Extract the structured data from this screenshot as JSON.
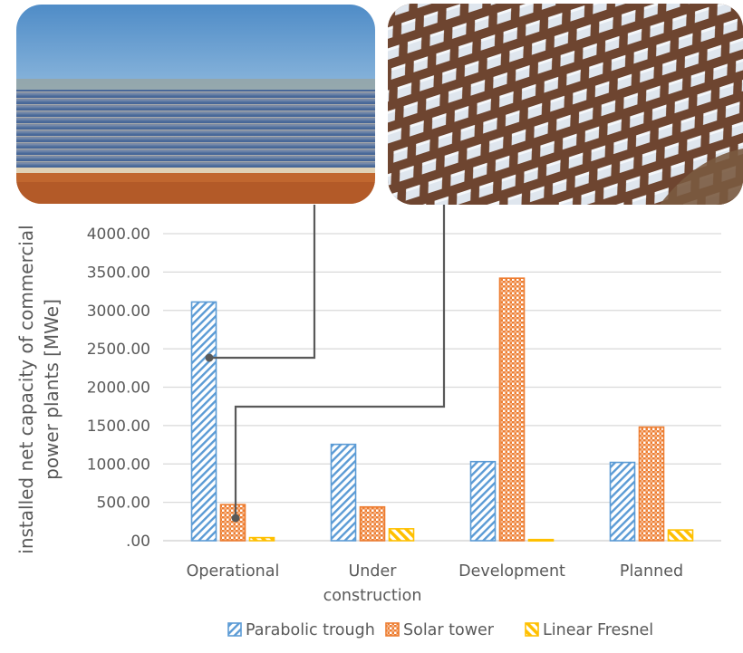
{
  "chart_data": {
    "type": "bar",
    "title": "",
    "xlabel": "",
    "ylabel_lines": [
      "installed net capacity of commercial",
      "power plants [MWe]"
    ],
    "ylim": [
      0,
      4000
    ],
    "yticks": [
      ".00",
      "500.00",
      "1000.00",
      "1500.00",
      "2000.00",
      "2500.00",
      "3000.00",
      "3500.00",
      "4000.00"
    ],
    "categories": [
      [
        "Operational"
      ],
      [
        "Under",
        "construction"
      ],
      [
        "Development"
      ],
      [
        "Planned"
      ]
    ],
    "series": [
      {
        "name": "Parabolic trough",
        "values": [
          3110,
          1255,
          1030,
          1020
        ]
      },
      {
        "name": "Solar tower",
        "values": [
          470,
          440,
          3420,
          1480
        ]
      },
      {
        "name": "Linear Fresnel",
        "values": [
          40,
          155,
          15,
          140
        ]
      }
    ],
    "grid": true,
    "legend_position": "bottom",
    "colors": {
      "Parabolic trough": "#5b9bd5",
      "Solar tower": "#ed7d31",
      "Linear Fresnel": "#ffc000",
      "grid": "#d9d9d9",
      "callout": "#595959"
    },
    "images": [
      {
        "name": "parabolic-trough-photo",
        "callout_bar": "Parabolic trough / Operational"
      },
      {
        "name": "solar-tower-photo",
        "callout_bar": "Solar tower / Operational"
      }
    ]
  }
}
